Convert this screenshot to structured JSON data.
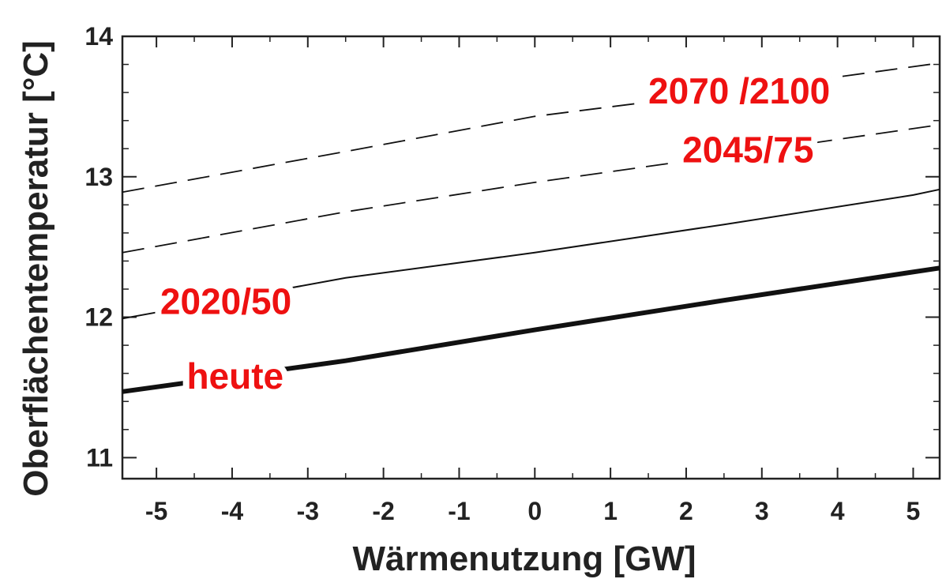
{
  "chart_data": {
    "type": "line",
    "xlabel": "Wärmenutzung [GW]",
    "ylabel": "Oberflächentemperatur [°C]",
    "xlim": [
      -5.45,
      5.35
    ],
    "ylim": [
      10.85,
      14.0
    ],
    "x_ticks": [
      -5,
      -4,
      -3,
      -2,
      -1,
      0,
      1,
      2,
      3,
      4,
      5
    ],
    "x_tick_labels": [
      "-5",
      "-4",
      "-3",
      "-2",
      "-1",
      "0",
      "1",
      "2",
      "3",
      "4",
      "5"
    ],
    "y_ticks": [
      11,
      12,
      13,
      14
    ],
    "y_tick_labels": [
      "11",
      "12",
      "13",
      "14"
    ],
    "grid": false,
    "label_color": "#ee1111",
    "series": [
      {
        "name": "heute",
        "style": "solid-thick",
        "x": [
          -5.45,
          -2.5,
          0,
          2.5,
          5.35
        ],
        "y": [
          11.47,
          11.69,
          11.91,
          12.12,
          12.35
        ]
      },
      {
        "name": "2020/50",
        "style": "solid-thin",
        "x": [
          -5.45,
          -2.5,
          0,
          2.5,
          5.0,
          5.35
        ],
        "y": [
          11.99,
          12.28,
          12.46,
          12.66,
          12.87,
          12.91
        ]
      },
      {
        "name": "2045/75",
        "style": "dashed",
        "x": [
          -5.45,
          -2.5,
          0,
          2.5,
          5.35
        ],
        "y": [
          12.46,
          12.75,
          12.96,
          13.15,
          13.37
        ]
      },
      {
        "name": "2070 /2100",
        "style": "dashed",
        "x": [
          -5.45,
          -2.5,
          0,
          2.5,
          5.35
        ],
        "y": [
          12.89,
          13.18,
          13.43,
          13.6,
          13.81
        ]
      }
    ]
  }
}
